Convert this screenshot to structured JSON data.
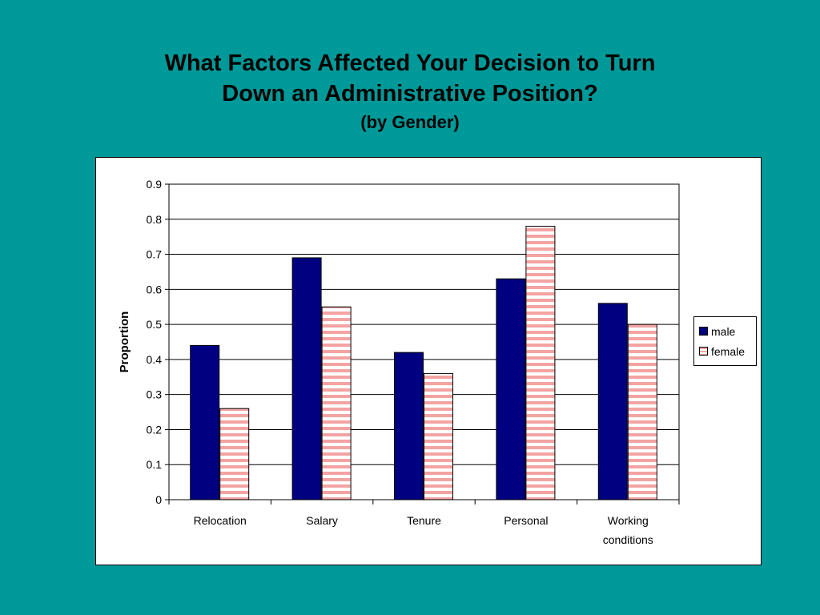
{
  "slide": {
    "title_line1": "What Factors Affected Your Decision to Turn",
    "title_line2": "Down an Administrative Position?",
    "subtitle": "(by Gender)"
  },
  "chart_data": {
    "type": "bar",
    "categories": [
      "Relocation",
      "Salary",
      "Tenure",
      "Personal",
      "Working conditions"
    ],
    "category_lines": [
      [
        "Relocation"
      ],
      [
        "Salary"
      ],
      [
        "Tenure"
      ],
      [
        "Personal"
      ],
      [
        "Working",
        "conditions"
      ]
    ],
    "series": [
      {
        "name": "male",
        "values": [
          0.44,
          0.69,
          0.42,
          0.63,
          0.56
        ],
        "color": "#000080"
      },
      {
        "name": "female",
        "values": [
          0.26,
          0.55,
          0.36,
          0.78,
          0.5
        ],
        "color": "#f4a3a3"
      }
    ],
    "ylabel": "Proportion",
    "ylim": [
      0,
      0.9
    ],
    "yticks": [
      "0",
      "0.1",
      "0.2",
      "0.3",
      "0.4",
      "0.5",
      "0.6",
      "0.7",
      "0.8",
      "0.9"
    ],
    "grid": true,
    "legend_position": "right"
  }
}
